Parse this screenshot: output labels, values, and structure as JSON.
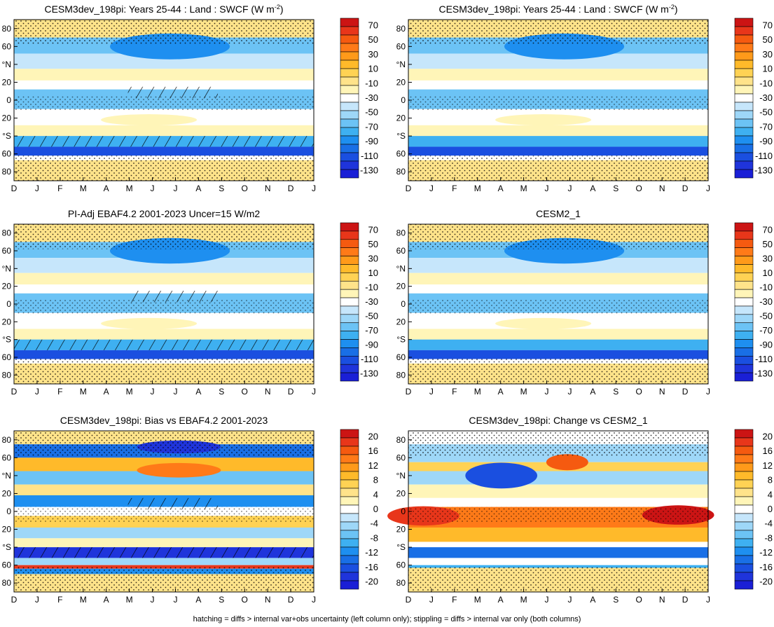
{
  "footer": "hatching = diffs > internal var+obs uncertainty (left column only); stippling = diffs > internal var only (both columns)",
  "colors": {
    "pos": [
      "#fff5b8",
      "#ffe38a",
      "#ffd254",
      "#ffba2a",
      "#ff9a1a",
      "#ff7a18",
      "#f55a10",
      "#e8361a",
      "#cc1414"
    ],
    "neg": [
      "#c6e6fb",
      "#9ed7f8",
      "#6cc3f5",
      "#3eb0f1",
      "#1e8ff0",
      "#196fe6",
      "#1a4fe0",
      "#1f34db",
      "#1a1fd6"
    ],
    "zero": "#ffffff",
    "stipple": "#000000"
  },
  "chart_data": [
    {
      "type": "heatmap",
      "id": "p1",
      "title": "CESM3dev_198pi: Years 25-44 : Land : SWCF (W m",
      "title_sup": "-2",
      "title_end": ")",
      "kind": "abs",
      "overlay": "hatch-stipple",
      "x_ticks": [
        "D",
        "J",
        "F",
        "M",
        "A",
        "M",
        "J",
        "J",
        "A",
        "S",
        "O",
        "N",
        "D",
        "J"
      ],
      "y_ticks": [
        "80",
        "60",
        "°N",
        "20",
        "0",
        "20",
        "°S",
        "60",
        "80"
      ],
      "colorbar": [
        "70",
        "50",
        "30",
        "10",
        "-10",
        "-30",
        "-50",
        "-70",
        "-90",
        "-110",
        "-130"
      ]
    },
    {
      "type": "heatmap",
      "id": "p2",
      "title": "CESM3dev_198pi: Years 25-44 : Land : SWCF (W m",
      "title_sup": "-2",
      "title_end": ")",
      "kind": "abs",
      "overlay": "stipple",
      "x_ticks": [
        "D",
        "J",
        "F",
        "M",
        "A",
        "M",
        "J",
        "J",
        "A",
        "S",
        "O",
        "N",
        "D",
        "J"
      ],
      "y_ticks": [
        "80",
        "60",
        "°N",
        "20",
        "0",
        "20",
        "°S",
        "60",
        "80"
      ],
      "colorbar": [
        "70",
        "50",
        "30",
        "10",
        "-10",
        "-30",
        "-50",
        "-70",
        "-90",
        "-110",
        "-130"
      ]
    },
    {
      "type": "heatmap",
      "id": "p3",
      "title": "PI-Adj EBAF4.2 2001-2023 Uncer=15 W/m2",
      "title_sup": "",
      "title_end": "",
      "kind": "abs",
      "overlay": "hatch-stipple",
      "x_ticks": [
        "D",
        "J",
        "F",
        "M",
        "A",
        "M",
        "J",
        "J",
        "A",
        "S",
        "O",
        "N",
        "D",
        "J"
      ],
      "y_ticks": [
        "80",
        "60",
        "°N",
        "20",
        "0",
        "20",
        "°S",
        "60",
        "80"
      ],
      "colorbar": [
        "70",
        "50",
        "30",
        "10",
        "-10",
        "-30",
        "-50",
        "-70",
        "-90",
        "-110",
        "-130"
      ]
    },
    {
      "type": "heatmap",
      "id": "p4",
      "title": "CESM2_1",
      "title_sup": "",
      "title_end": "",
      "kind": "abs",
      "overlay": "stipple",
      "x_ticks": [
        "D",
        "J",
        "F",
        "M",
        "A",
        "M",
        "J",
        "J",
        "A",
        "S",
        "O",
        "N",
        "D",
        "J"
      ],
      "y_ticks": [
        "80",
        "60",
        "°N",
        "20",
        "0",
        "20",
        "°S",
        "60",
        "80"
      ],
      "colorbar": [
        "70",
        "50",
        "30",
        "10",
        "-10",
        "-30",
        "-50",
        "-70",
        "-90",
        "-110",
        "-130"
      ]
    },
    {
      "type": "heatmap",
      "id": "p5",
      "title": "CESM3dev_198pi: Bias vs EBAF4.2 2001-2023",
      "title_sup": "",
      "title_end": "",
      "kind": "bias",
      "overlay": "hatch-stipple",
      "x_ticks": [
        "D",
        "J",
        "F",
        "M",
        "A",
        "M",
        "J",
        "J",
        "A",
        "S",
        "O",
        "N",
        "D",
        "J"
      ],
      "y_ticks": [
        "80",
        "60",
        "°N",
        "20",
        "0",
        "20",
        "°S",
        "60",
        "80"
      ],
      "colorbar": [
        "20",
        "16",
        "12",
        "8",
        "4",
        "0",
        "-4",
        "-8",
        "-12",
        "-16",
        "-20"
      ]
    },
    {
      "type": "heatmap",
      "id": "p6",
      "title": "CESM3dev_198pi: Change vs CESM2_1",
      "title_sup": "",
      "title_end": "",
      "kind": "change",
      "overlay": "stipple",
      "x_ticks": [
        "D",
        "J",
        "F",
        "M",
        "A",
        "M",
        "J",
        "J",
        "A",
        "S",
        "O",
        "N",
        "D",
        "J"
      ],
      "y_ticks": [
        "80",
        "60",
        "°N",
        "20",
        "0",
        "20",
        "°S",
        "60",
        "80"
      ],
      "colorbar": [
        "20",
        "16",
        "12",
        "8",
        "4",
        "0",
        "-4",
        "-8",
        "-12",
        "-16",
        "-20"
      ]
    }
  ]
}
